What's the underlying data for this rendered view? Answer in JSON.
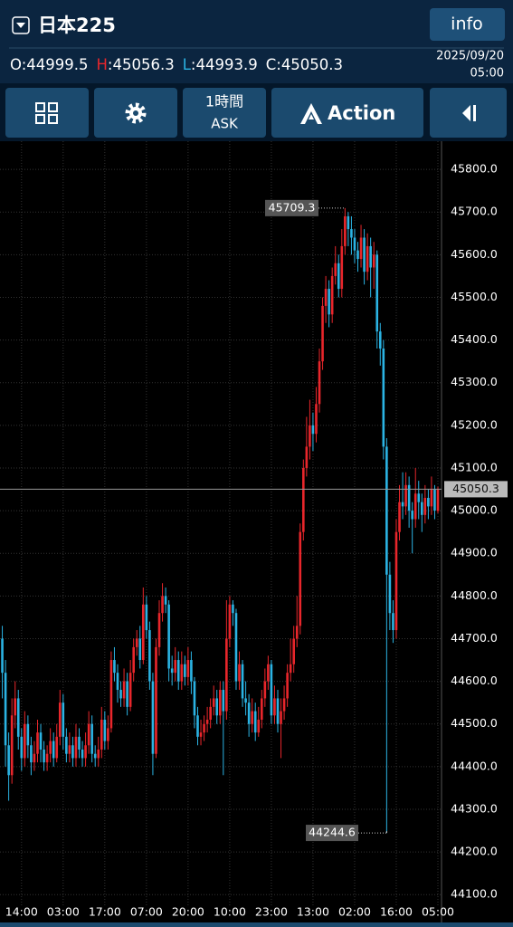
{
  "header": {
    "title": "日本225",
    "button": "info",
    "ohlc_labels": [
      "O",
      "H",
      "L",
      "C"
    ],
    "separator": ":",
    "date": "2025/09/20",
    "time": "05:00"
  },
  "toolbar": {
    "timeframe": "1時間",
    "price_side": "ASK",
    "action": "Action"
  },
  "chart_data": {
    "type": "candlestick",
    "up_color": "#e8262b",
    "down_color": "#2bb3e3",
    "grid": true,
    "xlim": [
      -0.72,
      137.13
    ],
    "ylim": [
      44075,
      45866
    ],
    "yticks": [
      {
        "value": 44100,
        "label": "44100.0"
      },
      {
        "value": 44200,
        "label": "44200.0"
      },
      {
        "value": 44300,
        "label": "44300.0"
      },
      {
        "value": 44400,
        "label": "44400.0"
      },
      {
        "value": 44500,
        "label": "44500.0"
      },
      {
        "value": 44600,
        "label": "44600.0"
      },
      {
        "value": 44700,
        "label": "44700.0"
      },
      {
        "value": 44800,
        "label": "44800.0"
      },
      {
        "value": 44900,
        "label": "44900.0"
      },
      {
        "value": 45000,
        "label": "45000.0"
      },
      {
        "value": 45100,
        "label": "45100.0"
      },
      {
        "value": 45200,
        "label": "45200.0"
      },
      {
        "value": 45300,
        "label": "45300.0"
      },
      {
        "value": 45400,
        "label": "45400.0"
      },
      {
        "value": 45500,
        "label": "45500.0"
      },
      {
        "value": 45600,
        "label": "45600.0"
      },
      {
        "value": 45700,
        "label": "45700.0"
      },
      {
        "value": 45800,
        "label": "45800.0"
      }
    ],
    "xticks": [
      {
        "value": 6,
        "label": "14:00"
      },
      {
        "value": 19,
        "label": "03:00"
      },
      {
        "value": 32,
        "label": "17:00"
      },
      {
        "value": 45,
        "label": "07:00"
      },
      {
        "value": 58,
        "label": "20:00"
      },
      {
        "value": 71,
        "label": "10:00"
      },
      {
        "value": 84,
        "label": "23:00"
      },
      {
        "value": 97,
        "label": "13:00"
      },
      {
        "value": 110,
        "label": "02:00"
      },
      {
        "value": 123,
        "label": "16:00"
      },
      {
        "value": 136,
        "label": "05:00"
      }
    ],
    "high_index": 107,
    "low_index": 120,
    "candles": [
      [
        44700,
        44730,
        44560,
        44620
      ],
      [
        44620,
        44650,
        44400,
        44450
      ],
      [
        44450,
        44480,
        44320,
        44380
      ],
      [
        44380,
        44560,
        44360,
        44520
      ],
      [
        44520,
        44600,
        44490,
        44560
      ],
      [
        44560,
        44580,
        44440,
        44470
      ],
      [
        44470,
        44490,
        44390,
        44420
      ],
      [
        44420,
        44530,
        44400,
        44500
      ],
      [
        44500,
        44520,
        44420,
        44450
      ],
      [
        44450,
        44470,
        44380,
        44410
      ],
      [
        44410,
        44460,
        44390,
        44430
      ],
      [
        44430,
        44510,
        44410,
        44480
      ],
      [
        44480,
        44500,
        44410,
        44440
      ],
      [
        44440,
        44460,
        44390,
        44410
      ],
      [
        44410,
        44450,
        44390,
        44430
      ],
      [
        44430,
        44490,
        44410,
        44460
      ],
      [
        44460,
        44480,
        44400,
        44420
      ],
      [
        44420,
        44500,
        44410,
        44470
      ],
      [
        44470,
        44580,
        44450,
        44550
      ],
      [
        44550,
        44570,
        44440,
        44470
      ],
      [
        44470,
        44490,
        44410,
        44430
      ],
      [
        44430,
        44480,
        44410,
        44450
      ],
      [
        44450,
        44470,
        44400,
        44420
      ],
      [
        44420,
        44500,
        44400,
        44470
      ],
      [
        44470,
        44490,
        44420,
        44440
      ],
      [
        44440,
        44460,
        44400,
        44420
      ],
      [
        44420,
        44480,
        44400,
        44450
      ],
      [
        44450,
        44530,
        44430,
        44500
      ],
      [
        44500,
        44520,
        44410,
        44430
      ],
      [
        44430,
        44450,
        44400,
        44420
      ],
      [
        44420,
        44470,
        44400,
        44440
      ],
      [
        44440,
        44540,
        44420,
        44510
      ],
      [
        44510,
        44530,
        44440,
        44460
      ],
      [
        44460,
        44520,
        44440,
        44490
      ],
      [
        44490,
        44670,
        44480,
        44650
      ],
      [
        44650,
        44680,
        44600,
        44620
      ],
      [
        44620,
        44640,
        44550,
        44580
      ],
      [
        44580,
        44600,
        44540,
        44560
      ],
      [
        44560,
        44630,
        44540,
        44600
      ],
      [
        44600,
        44620,
        44520,
        44540
      ],
      [
        44540,
        44650,
        44530,
        44620
      ],
      [
        44620,
        44700,
        44600,
        44680
      ],
      [
        44680,
        44720,
        44660,
        44700
      ],
      [
        44700,
        44730,
        44630,
        44650
      ],
      [
        44650,
        44820,
        44640,
        44780
      ],
      [
        44780,
        44800,
        44700,
        44720
      ],
      [
        44720,
        44740,
        44580,
        44600
      ],
      [
        44600,
        44620,
        44380,
        44430
      ],
      [
        44430,
        44700,
        44420,
        44680
      ],
      [
        44680,
        44790,
        44660,
        44760
      ],
      [
        44760,
        44830,
        44740,
        44800
      ],
      [
        44800,
        44820,
        44760,
        44780
      ],
      [
        44780,
        44790,
        44600,
        44630
      ],
      [
        44630,
        44660,
        44590,
        44620
      ],
      [
        44620,
        44680,
        44600,
        44650
      ],
      [
        44650,
        44670,
        44580,
        44600
      ],
      [
        44600,
        44670,
        44580,
        44640
      ],
      [
        44640,
        44660,
        44590,
        44610
      ],
      [
        44610,
        44680,
        44590,
        44650
      ],
      [
        44650,
        44670,
        44570,
        44600
      ],
      [
        44600,
        44610,
        44490,
        44520
      ],
      [
        44520,
        44540,
        44450,
        44470
      ],
      [
        44470,
        44510,
        44450,
        44480
      ],
      [
        44480,
        44520,
        44460,
        44500
      ],
      [
        44500,
        44540,
        44480,
        44510
      ],
      [
        44510,
        44560,
        44490,
        44540
      ],
      [
        44540,
        44590,
        44520,
        44560
      ],
      [
        44560,
        44580,
        44500,
        44520
      ],
      [
        44520,
        44600,
        44500,
        44580
      ],
      [
        44580,
        44600,
        44380,
        44530
      ],
      [
        44530,
        44790,
        44510,
        44700
      ],
      [
        44700,
        44800,
        44680,
        44780
      ],
      [
        44780,
        44790,
        44730,
        44760
      ],
      [
        44760,
        44770,
        44580,
        44600
      ],
      [
        44600,
        44670,
        44580,
        44640
      ],
      [
        44640,
        44650,
        44540,
        44560
      ],
      [
        44560,
        44600,
        44520,
        44550
      ],
      [
        44550,
        44570,
        44470,
        44500
      ],
      [
        44500,
        44560,
        44480,
        44530
      ],
      [
        44530,
        44550,
        44460,
        44480
      ],
      [
        44480,
        44540,
        44470,
        44510
      ],
      [
        44510,
        44580,
        44490,
        44560
      ],
      [
        44560,
        44630,
        44540,
        44600
      ],
      [
        44600,
        44660,
        44580,
        44640
      ],
      [
        44640,
        44650,
        44500,
        44520
      ],
      [
        44520,
        44590,
        44500,
        44560
      ],
      [
        44560,
        44580,
        44480,
        44500
      ],
      [
        44500,
        44560,
        44420,
        44530
      ],
      [
        44530,
        44590,
        44510,
        44560
      ],
      [
        44560,
        44640,
        44540,
        44620
      ],
      [
        44620,
        44700,
        44600,
        44640
      ],
      [
        44640,
        44730,
        44620,
        44700
      ],
      [
        44700,
        44800,
        44680,
        44730
      ],
      [
        44730,
        44970,
        44710,
        44950
      ],
      [
        44950,
        45120,
        44930,
        45100
      ],
      [
        45100,
        45220,
        45080,
        45150
      ],
      [
        45150,
        45260,
        45120,
        45200
      ],
      [
        45200,
        45230,
        45140,
        45180
      ],
      [
        45180,
        45290,
        45160,
        45250
      ],
      [
        45250,
        45380,
        45230,
        45350
      ],
      [
        45350,
        45500,
        45330,
        45480
      ],
      [
        45480,
        45550,
        45440,
        45520
      ],
      [
        45520,
        45540,
        45430,
        45460
      ],
      [
        45460,
        45570,
        45440,
        45550
      ],
      [
        45550,
        45620,
        45530,
        45580
      ],
      [
        45580,
        45600,
        45500,
        45520
      ],
      [
        45520,
        45660,
        45500,
        45620
      ],
      [
        45620,
        45709.3,
        45600,
        45690
      ],
      [
        45690,
        45700,
        45620,
        45660
      ],
      [
        45660,
        45690,
        45600,
        45640
      ],
      [
        45640,
        45660,
        45580,
        45610
      ],
      [
        45610,
        45630,
        45560,
        45590
      ],
      [
        45590,
        45670,
        45570,
        45640
      ],
      [
        45640,
        45660,
        45530,
        45560
      ],
      [
        45560,
        45650,
        45540,
        45620
      ],
      [
        45620,
        45640,
        45500,
        45570
      ],
      [
        45570,
        45630,
        45520,
        45600
      ],
      [
        45600,
        45610,
        45380,
        45420
      ],
      [
        45420,
        45440,
        45340,
        45380
      ],
      [
        45380,
        45400,
        45120,
        45150
      ],
      [
        45150,
        45170,
        44244.6,
        44850
      ],
      [
        44850,
        44880,
        44720,
        44760
      ],
      [
        44760,
        44790,
        44690,
        44720
      ],
      [
        44720,
        44980,
        44700,
        44950
      ],
      [
        44950,
        45060,
        44930,
        45020
      ],
      [
        45020,
        45090,
        44980,
        45010
      ],
      [
        45010,
        45090,
        44990,
        45060
      ],
      [
        45060,
        45080,
        44960,
        45000
      ],
      [
        45000,
        45020,
        44900,
        44980
      ],
      [
        44980,
        45100,
        44960,
        45040
      ],
      [
        45040,
        45070,
        44980,
        45020
      ],
      [
        45020,
        45040,
        44950,
        44990
      ],
      [
        44990,
        45060,
        44970,
        45030
      ],
      [
        45030,
        45050,
        44980,
        45010
      ],
      [
        45010,
        45080,
        44990,
        45050
      ],
      [
        45050,
        45060,
        44980,
        45000
      ],
      [
        44999.5,
        45056.3,
        44993.9,
        45050.3
      ]
    ]
  }
}
